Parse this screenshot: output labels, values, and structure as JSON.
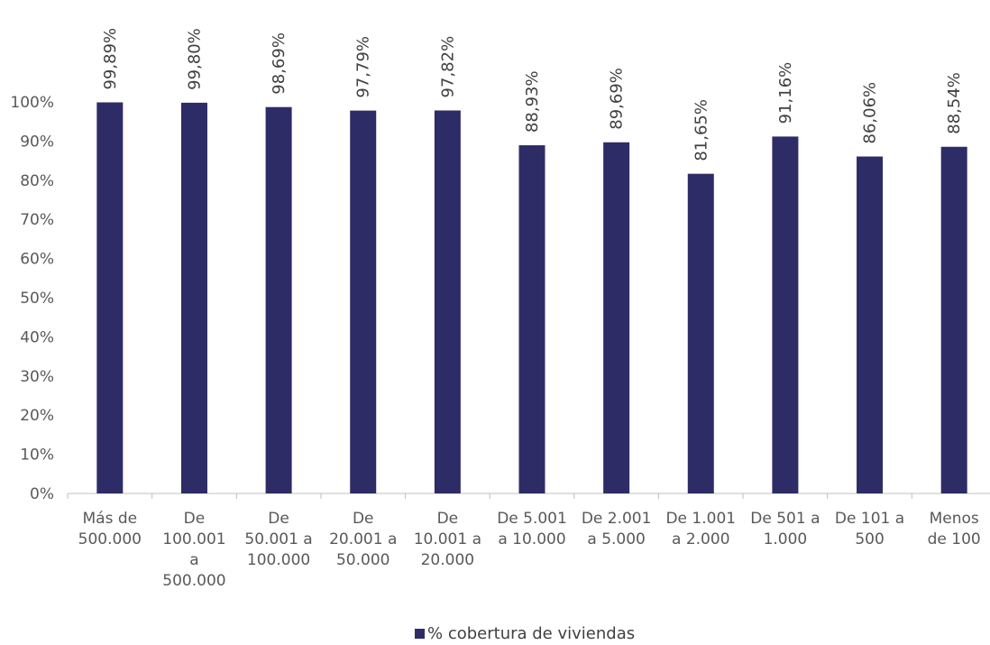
{
  "chart_data": {
    "type": "bar",
    "title": "",
    "xlabel": "",
    "ylabel": "",
    "ylim": [
      0,
      1
    ],
    "y_ticks": [
      "0%",
      "10%",
      "20%",
      "30%",
      "40%",
      "50%",
      "60%",
      "70%",
      "80%",
      "90%",
      "100%"
    ],
    "grid": false,
    "legend_position": "bottom",
    "bar_color": "#2e2c66",
    "categories": [
      [
        "Más de",
        "500.000"
      ],
      [
        "De",
        "100.001",
        "a",
        "500.000"
      ],
      [
        "De",
        "50.001 a",
        "100.000"
      ],
      [
        "De",
        "20.001 a",
        "50.000"
      ],
      [
        "De",
        "10.001 a",
        "20.000"
      ],
      [
        "De 5.001",
        "a 10.000"
      ],
      [
        "De 2.001",
        "a 5.000"
      ],
      [
        "De 1.001",
        "a 2.000"
      ],
      [
        "De 501 a",
        "1.000"
      ],
      [
        "De 101 a",
        "500"
      ],
      [
        "Menos",
        "de 100"
      ]
    ],
    "series": [
      {
        "name": "% cobertura de viviendas",
        "values": [
          0.9989,
          0.998,
          0.9869,
          0.9779,
          0.9782,
          0.8893,
          0.8969,
          0.8165,
          0.9116,
          0.8606,
          0.8854
        ],
        "labels": [
          "99,89%",
          "99,80%",
          "98,69%",
          "97,79%",
          "97,82%",
          "88,93%",
          "89,69%",
          "81,65%",
          "91,16%",
          "86,06%",
          "88,54%"
        ]
      }
    ]
  }
}
